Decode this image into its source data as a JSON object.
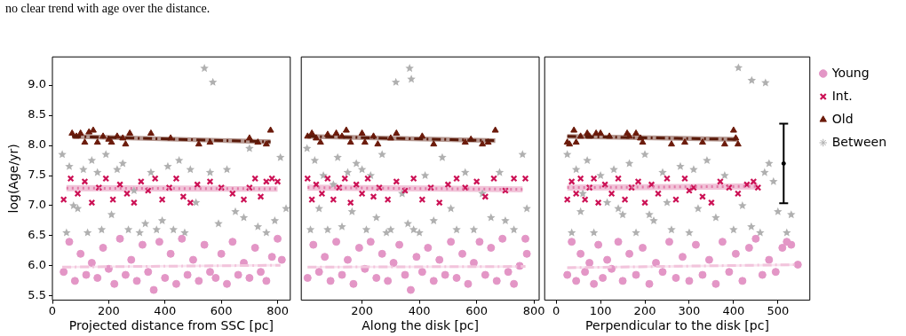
{
  "chart_data": [
    {
      "type": "scatter",
      "annotations": [
        "no clear trend with age over the distance."
      ],
      "xlabel": "Projected distance from SSC [pc]",
      "ylabel": "log(Age/yr)",
      "xlim": [
        0,
        845
      ],
      "xticks": [
        0,
        200,
        400,
        600,
        800
      ],
      "ylim": [
        5.43,
        9.47
      ],
      "yticks": [
        5.5,
        {
          "value": 6,
          "label": "6.0"
        },
        6.5,
        {
          "value": 7,
          "label": "7.0"
        },
        7.5,
        {
          "value": 8,
          "label": "8.0"
        },
        8.5,
        {
          "value": 9,
          "label": "9.0"
        }
      ],
      "series": [
        {
          "color": "#e396c6",
          "marker": "circle",
          "x": [
            40,
            60,
            80,
            100,
            120,
            140,
            160,
            180,
            200,
            220,
            240,
            260,
            280,
            300,
            320,
            340,
            360,
            380,
            400,
            420,
            440,
            460,
            480,
            500,
            520,
            540,
            560,
            580,
            600,
            620,
            640,
            660,
            680,
            700,
            720,
            740,
            760,
            780,
            800,
            815
          ],
          "values": [
            5.9,
            6.4,
            5.75,
            6.2,
            5.85,
            6.05,
            5.8,
            6.3,
            5.95,
            5.7,
            6.45,
            5.85,
            6.1,
            5.75,
            6.35,
            5.9,
            5.6,
            6.4,
            5.8,
            6.2,
            5.7,
            6.45,
            5.85,
            6.1,
            5.75,
            6.35,
            5.9,
            5.8,
            6.2,
            5.7,
            6.4,
            5.85,
            6.05,
            5.8,
            6.3,
            5.9,
            5.75,
            6.15,
            6.45,
            6.1
          ]
        },
        {
          "color": "#cc1155",
          "marker": "cross",
          "x": [
            40,
            65,
            90,
            115,
            140,
            165,
            190,
            215,
            240,
            265,
            290,
            315,
            340,
            365,
            390,
            415,
            440,
            465,
            490,
            515,
            560,
            600,
            640,
            680,
            700,
            720,
            740,
            760,
            780,
            800
          ],
          "values": [
            7.1,
            7.45,
            7.2,
            7.4,
            7.05,
            7.3,
            7.45,
            7.1,
            7.35,
            7.2,
            7.05,
            7.4,
            7.25,
            7.45,
            7.1,
            7.3,
            7.45,
            7.15,
            7.05,
            7.35,
            7.4,
            7.3,
            7.2,
            7.1,
            7.3,
            7.45,
            7.15,
            7.4,
            7.45,
            7.4
          ]
        },
        {
          "color": "#6b1a0a",
          "marker": "triangle",
          "x": [
            70,
            85,
            100,
            115,
            130,
            145,
            160,
            180,
            200,
            210,
            230,
            250,
            260,
            275,
            350,
            420,
            520,
            560,
            700,
            730,
            760,
            775
          ],
          "values": [
            8.2,
            8.15,
            8.2,
            8.05,
            8.22,
            8.25,
            8.05,
            8.15,
            8.1,
            8.05,
            8.15,
            8.12,
            8.02,
            8.2,
            8.2,
            8.12,
            8.02,
            8.05,
            8.12,
            8.05,
            8.02,
            8.25
          ]
        },
        {
          "color": "#b0b0b0",
          "marker": "star",
          "x": [
            35,
            50,
            60,
            75,
            90,
            110,
            125,
            140,
            160,
            175,
            190,
            210,
            230,
            250,
            270,
            290,
            310,
            330,
            350,
            370,
            390,
            410,
            430,
            450,
            470,
            490,
            510,
            540,
            560,
            570,
            590,
            620,
            650,
            680,
            700,
            730,
            760,
            790,
            810,
            830
          ],
          "values": [
            7.85,
            6.55,
            7.65,
            7.0,
            6.95,
            7.6,
            6.55,
            7.75,
            7.55,
            6.6,
            7.85,
            6.85,
            7.6,
            7.7,
            6.6,
            7.25,
            6.55,
            6.7,
            7.55,
            6.6,
            6.75,
            7.65,
            6.6,
            7.75,
            6.55,
            7.6,
            7.05,
            9.28,
            7.55,
            9.05,
            6.7,
            7.6,
            6.9,
            6.8,
            7.95,
            6.65,
            6.55,
            6.75,
            7.8,
            6.95
          ]
        },
        {
          "type": "line",
          "color": "#f2c4dc",
          "line_style": "dashed",
          "x": [
            35,
            810
          ],
          "values": [
            5.98,
            6.01
          ],
          "lower": [
            5.96,
            5.99
          ],
          "upper": [
            6.0,
            6.03
          ]
        },
        {
          "type": "line",
          "color": "#e07aa8",
          "line_style": "dotted",
          "x": [
            50,
            800
          ],
          "values": [
            7.29,
            7.28
          ],
          "lower": [
            7.24,
            7.23
          ],
          "upper": [
            7.34,
            7.33
          ]
        },
        {
          "type": "line",
          "color": "#5a1a0a",
          "line_style": "dashed",
          "x": [
            70,
            775
          ],
          "values": [
            8.15,
            8.06
          ],
          "lower": [
            8.11,
            8.02
          ],
          "upper": [
            8.19,
            8.1
          ]
        }
      ]
    },
    {
      "type": "scatter",
      "xlabel": "Along the disk [pc]",
      "tick_labels": "x",
      "xlim": [
        -12,
        818
      ],
      "xticks": [
        200,
        400,
        600,
        800
      ],
      "ylim": [
        5.43,
        9.47
      ],
      "yticks": [
        5.5,
        6.0,
        6.5,
        7.0,
        7.5,
        8.0,
        8.5,
        9.0
      ],
      "series": [
        {
          "color": "#e396c6",
          "marker": "circle",
          "x": [
            10,
            30,
            50,
            70,
            90,
            110,
            130,
            150,
            170,
            190,
            210,
            230,
            250,
            270,
            290,
            310,
            330,
            350,
            370,
            390,
            410,
            430,
            450,
            470,
            490,
            510,
            530,
            550,
            570,
            590,
            610,
            630,
            650,
            670,
            690,
            710,
            730,
            750,
            770,
            775
          ],
          "values": [
            5.8,
            6.35,
            5.9,
            6.15,
            5.75,
            6.4,
            5.85,
            6.1,
            5.7,
            6.3,
            5.95,
            6.4,
            5.8,
            6.2,
            5.75,
            6.05,
            6.35,
            5.85,
            5.6,
            6.15,
            5.9,
            6.3,
            5.75,
            6.1,
            5.85,
            6.4,
            5.8,
            6.2,
            5.7,
            6.05,
            6.4,
            5.85,
            6.3,
            5.75,
            6.45,
            5.9,
            5.7,
            6.0,
            6.45,
            6.2
          ]
        },
        {
          "color": "#cc1155",
          "marker": "cross",
          "x": [
            10,
            25,
            40,
            60,
            80,
            100,
            120,
            140,
            160,
            180,
            200,
            220,
            240,
            260,
            290,
            320,
            350,
            380,
            410,
            440,
            470,
            500,
            530,
            560,
            600,
            630,
            660,
            700,
            730,
            770
          ],
          "values": [
            7.45,
            7.1,
            7.35,
            7.2,
            7.45,
            7.1,
            7.3,
            7.45,
            7.05,
            7.35,
            7.2,
            7.45,
            7.15,
            7.3,
            7.1,
            7.4,
            7.25,
            7.45,
            7.1,
            7.3,
            7.05,
            7.35,
            7.45,
            7.3,
            7.4,
            7.15,
            7.45,
            7.25,
            7.45,
            7.45
          ]
        },
        {
          "color": "#6b1a0a",
          "marker": "triangle",
          "x": [
            10,
            25,
            40,
            55,
            80,
            110,
            130,
            145,
            160,
            200,
            210,
            240,
            255,
            300,
            320,
            410,
            450,
            560,
            580,
            620,
            640,
            665
          ],
          "values": [
            8.15,
            8.2,
            8.12,
            8.05,
            8.18,
            8.2,
            8.15,
            8.25,
            8.05,
            8.2,
            8.05,
            8.15,
            8.02,
            8.12,
            8.2,
            8.15,
            8.02,
            8.05,
            8.1,
            8.02,
            8.05,
            8.25
          ]
        },
        {
          "color": "#b0b0b0",
          "marker": "star",
          "x": [
            8,
            20,
            35,
            50,
            65,
            80,
            100,
            115,
            130,
            150,
            165,
            180,
            200,
            215,
            230,
            250,
            270,
            285,
            300,
            318,
            340,
            366,
            360,
            380,
            400,
            420,
            450,
            480,
            510,
            530,
            560,
            590,
            620,
            650,
            680,
            700,
            730,
            760,
            775,
            372
          ],
          "values": [
            7.95,
            6.6,
            7.75,
            6.95,
            7.5,
            6.6,
            7.35,
            7.8,
            6.65,
            7.55,
            6.9,
            7.7,
            7.6,
            6.6,
            7.5,
            6.8,
            7.85,
            6.55,
            6.6,
            9.05,
            7.2,
            9.28,
            6.7,
            6.6,
            6.55,
            7.5,
            6.75,
            7.8,
            6.95,
            6.6,
            7.55,
            6.6,
            7.2,
            6.8,
            7.55,
            6.75,
            6.6,
            7.85,
            6.95,
            9.1
          ]
        },
        {
          "type": "line",
          "color": "#f2c4dc",
          "line_style": "dashed",
          "x": [
            10,
            770
          ],
          "values": [
            5.98,
            5.99
          ],
          "lower": [
            5.96,
            5.97
          ],
          "upper": [
            6.0,
            6.01
          ]
        },
        {
          "type": "line",
          "color": "#e07aa8",
          "line_style": "dotted",
          "x": [
            10,
            760
          ],
          "values": [
            7.3,
            7.27
          ],
          "lower": [
            7.25,
            7.22
          ],
          "upper": [
            7.35,
            7.32
          ]
        },
        {
          "type": "line",
          "color": "#5a1a0a",
          "line_style": "dashed",
          "x": [
            10,
            665
          ],
          "values": [
            8.15,
            8.08
          ],
          "lower": [
            8.11,
            8.04
          ],
          "upper": [
            8.19,
            8.12
          ]
        }
      ]
    },
    {
      "type": "scatter",
      "xlabel": "Perpendicular to the disk [pc]",
      "tick_labels": "x",
      "legend": "right",
      "xlim": [
        -26,
        572
      ],
      "xticks": [
        0,
        100,
        200,
        300,
        400,
        500
      ],
      "ylim": [
        5.43,
        9.47
      ],
      "yticks": [
        5.5,
        6.0,
        6.5,
        7.0,
        7.5,
        8.0,
        8.5,
        9.0
      ],
      "series": [
        {
          "name": "Young",
          "color": "#e396c6",
          "marker": "circle",
          "x": [
            25,
            35,
            45,
            55,
            65,
            75,
            85,
            95,
            105,
            115,
            125,
            140,
            150,
            165,
            180,
            195,
            210,
            225,
            240,
            255,
            270,
            285,
            300,
            315,
            330,
            345,
            360,
            375,
            390,
            405,
            420,
            435,
            450,
            465,
            480,
            495,
            510,
            520,
            530,
            545
          ],
          "values": [
            5.85,
            6.4,
            5.75,
            6.2,
            5.9,
            6.05,
            5.7,
            6.35,
            5.8,
            6.1,
            5.95,
            6.4,
            5.75,
            6.2,
            5.85,
            6.3,
            5.7,
            6.05,
            5.9,
            6.4,
            5.8,
            6.15,
            5.75,
            6.35,
            5.85,
            6.1,
            5.7,
            6.4,
            5.9,
            6.2,
            5.75,
            6.3,
            6.45,
            5.85,
            6.1,
            5.9,
            6.3,
            6.4,
            6.35,
            6.02
          ]
        },
        {
          "name": "Int.",
          "color": "#cc1155",
          "marker": "cross",
          "x": [
            25,
            35,
            45,
            55,
            65,
            75,
            85,
            95,
            110,
            125,
            140,
            155,
            170,
            185,
            200,
            215,
            230,
            250,
            270,
            290,
            310,
            330,
            350,
            370,
            390,
            410,
            430,
            445,
            455,
            300
          ],
          "values": [
            7.1,
            7.4,
            7.2,
            7.45,
            7.1,
            7.3,
            7.45,
            7.05,
            7.35,
            7.2,
            7.45,
            7.1,
            7.3,
            7.4,
            7.05,
            7.35,
            7.2,
            7.45,
            7.1,
            7.45,
            7.3,
            7.15,
            7.05,
            7.4,
            7.3,
            7.2,
            7.35,
            7.4,
            7.3,
            7.25
          ]
        },
        {
          "name": "Old",
          "color": "#6b1a0a",
          "marker": "triangle",
          "x": [
            25,
            30,
            40,
            45,
            55,
            70,
            75,
            90,
            100,
            120,
            160,
            165,
            180,
            190,
            195,
            260,
            290,
            330,
            380,
            400,
            410,
            405
          ],
          "values": [
            8.05,
            8.02,
            8.25,
            8.05,
            8.15,
            8.2,
            8.15,
            8.2,
            8.2,
            8.15,
            8.2,
            8.15,
            8.2,
            8.12,
            8.05,
            8.02,
            8.05,
            8.05,
            8.02,
            8.25,
            8.02,
            8.12
          ]
        },
        {
          "name": "Between",
          "color": "#b0b0b0",
          "marker": "star",
          "x": [
            25,
            35,
            45,
            55,
            70,
            85,
            100,
            115,
            130,
            150,
            165,
            180,
            200,
            220,
            240,
            260,
            280,
            300,
            320,
            340,
            360,
            380,
            400,
            420,
            440,
            460,
            480,
            500,
            520,
            530,
            411,
            441,
            472,
            470,
            490,
            210,
            250,
            140,
            60,
            310
          ],
          "values": [
            7.85,
            6.55,
            7.6,
            6.9,
            7.75,
            6.55,
            7.5,
            7.05,
            7.6,
            6.85,
            7.7,
            6.55,
            7.85,
            6.75,
            7.55,
            6.6,
            7.65,
            6.55,
            6.95,
            7.75,
            6.8,
            7.5,
            6.6,
            7.0,
            6.65,
            6.55,
            7.7,
            6.9,
            6.55,
            6.85,
            9.29,
            9.08,
            9.04,
            7.55,
            7.4,
            6.85,
            7.05,
            6.95,
            7.2,
            7.6
          ]
        },
        {
          "type": "line",
          "color": "#f2c4dc",
          "line_style": "dashed",
          "x": [
            25,
            545
          ],
          "values": [
            5.97,
            6.02
          ],
          "lower": [
            5.95,
            6.0
          ],
          "upper": [
            5.99,
            6.04
          ]
        },
        {
          "type": "line",
          "color": "#e07aa8",
          "line_style": "dotted",
          "x": [
            25,
            455
          ],
          "values": [
            7.3,
            7.32
          ],
          "lower": [
            7.25,
            7.27
          ],
          "upper": [
            7.35,
            7.37
          ]
        },
        {
          "type": "line",
          "color": "#5a1a0a",
          "line_style": "dashed",
          "x": [
            25,
            410
          ],
          "values": [
            8.15,
            8.1
          ],
          "lower": [
            8.11,
            8.06
          ],
          "upper": [
            8.19,
            8.14
          ]
        },
        {
          "color": "#000000",
          "marker": "circle",
          "x": [
            513
          ],
          "values": [
            7.7
          ],
          "errors": [
            [
              7.04,
              8.36
            ]
          ]
        }
      ]
    }
  ]
}
